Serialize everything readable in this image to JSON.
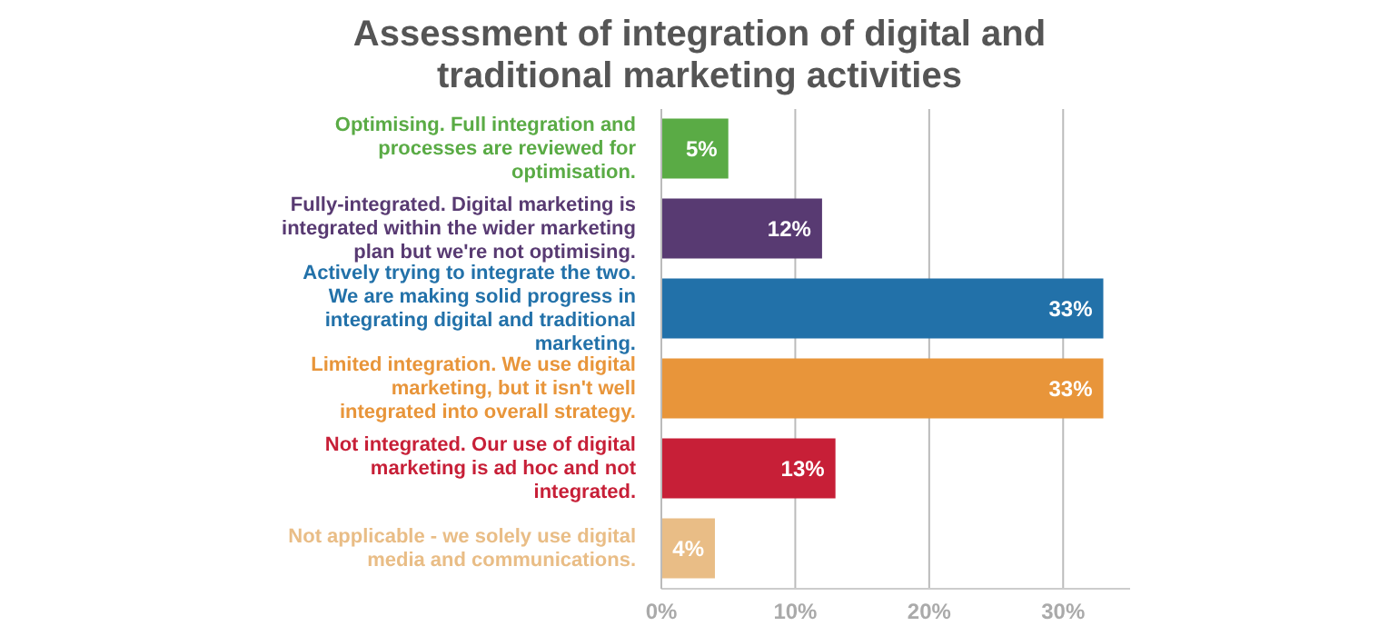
{
  "chart_data": {
    "type": "bar",
    "orientation": "horizontal",
    "title": "Assessment of integration of digital and traditional marketing activities",
    "categories": [
      "Optimising. Full integration and processes are reviewed for optimisation.",
      "Fully-integrated. Digital marketing is integrated within the wider marketing plan but we're not optimising.",
      "Actively trying to integrate the two. We are making solid progress in integrating digital and traditional marketing.",
      "Limited integration. We use digital marketing, but it isn't well integrated into overall strategy.",
      "Not integrated. Our use of digital marketing is ad hoc and not integrated.",
      "Not applicable - we solely use digital media and communications."
    ],
    "values": [
      5,
      12,
      33,
      33,
      13,
      4
    ],
    "value_labels": [
      "5%",
      "12%",
      "33%",
      "33%",
      "13%",
      "4%"
    ],
    "colors": [
      "#5aab45",
      "#583a72",
      "#2271a9",
      "#e8953a",
      "#c71f37",
      "#e9bd86"
    ],
    "xlim": [
      0,
      35
    ],
    "xticks": [
      {
        "value": 0,
        "label": "0%"
      },
      {
        "value": 10,
        "label": "10%"
      },
      {
        "value": 20,
        "label": "20%"
      },
      {
        "value": 30,
        "label": "30%"
      }
    ],
    "grid": "x"
  }
}
